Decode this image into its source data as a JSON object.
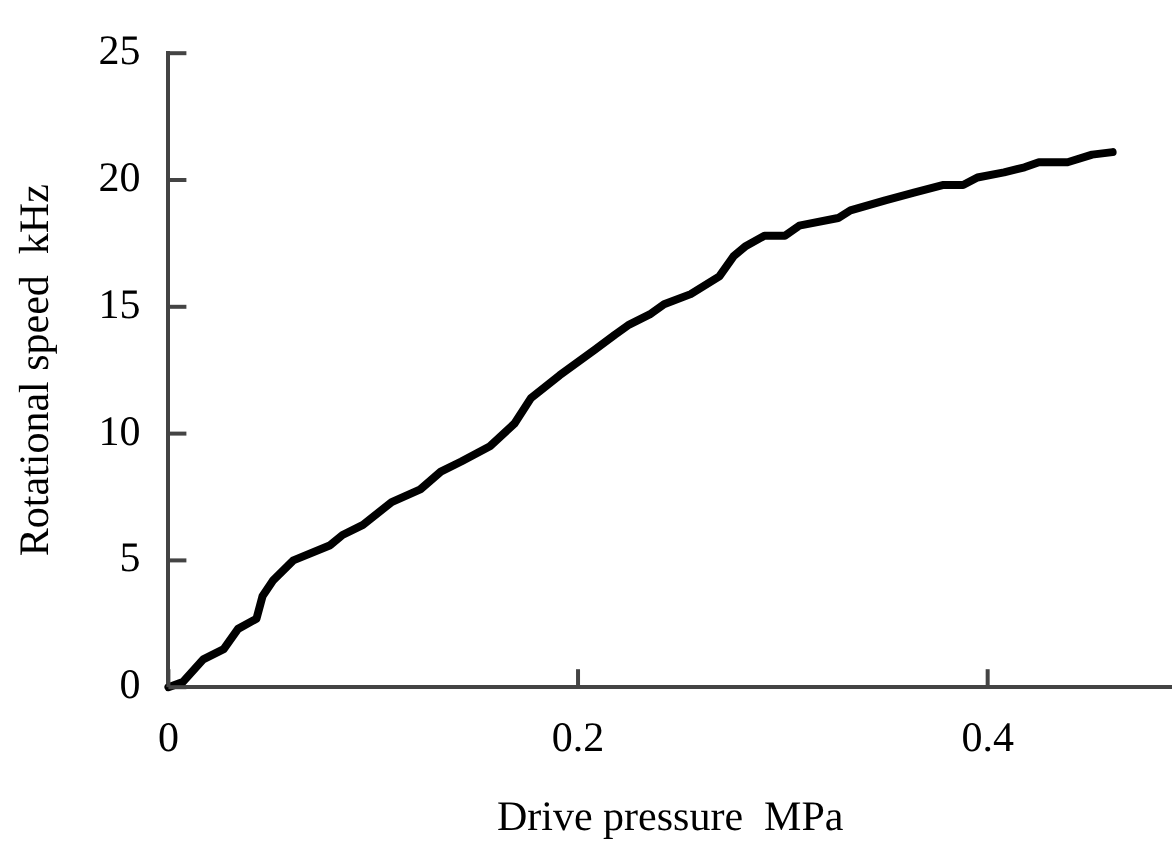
{
  "chart_data": {
    "type": "line",
    "xlabel": "Drive pressure  MPa",
    "ylabel": "Rotational speed  kHz",
    "x": [
      0,
      0.007,
      0.017,
      0.027,
      0.034,
      0.043,
      0.046,
      0.051,
      0.061,
      0.079,
      0.085,
      0.095,
      0.109,
      0.123,
      0.133,
      0.143,
      0.157,
      0.169,
      0.177,
      0.191,
      0.208,
      0.218,
      0.225,
      0.235,
      0.242,
      0.255,
      0.269,
      0.276,
      0.282,
      0.291,
      0.301,
      0.308,
      0.327,
      0.333,
      0.35,
      0.364,
      0.378,
      0.388,
      0.395,
      0.408,
      0.418,
      0.425,
      0.439,
      0.451,
      0.461
    ],
    "series": [
      {
        "color": "#000000",
        "values": [
          0,
          0.2,
          1.1,
          1.5,
          2.3,
          2.7,
          3.6,
          4.2,
          5,
          5.6,
          6,
          6.4,
          7.3,
          7.8,
          8.5,
          8.9,
          9.5,
          10.4,
          11.4,
          12.3,
          13.3,
          13.9,
          14.3,
          14.7,
          15.1,
          15.5,
          16.2,
          17,
          17.4,
          17.8,
          17.8,
          18.2,
          18.5,
          18.8,
          19.2,
          19.5,
          19.8,
          19.8,
          20.1,
          20.3,
          20.5,
          20.7,
          20.7,
          21,
          21.1
        ]
      }
    ],
    "xlim": [
      0,
      0.49
    ],
    "xticks": [
      0,
      0.2,
      0.4
    ],
    "ylim": [
      0,
      25
    ],
    "yticks": [
      0,
      5,
      10,
      15,
      20,
      25
    ],
    "grid": false,
    "legend": false,
    "marker": "none",
    "line_style": "solid"
  }
}
